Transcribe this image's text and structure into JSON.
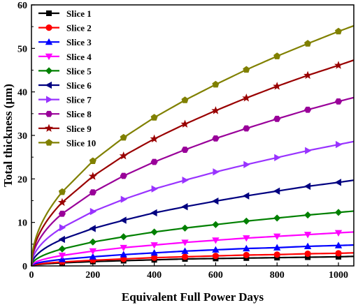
{
  "chart_data": {
    "type": "line",
    "title": "",
    "xlabel": "Equivalent Full Power Days",
    "ylabel": "Total thickness (μm)",
    "xlim": [
      0,
      1050
    ],
    "ylim": [
      0,
      60
    ],
    "xticks": [
      0,
      200,
      400,
      600,
      800,
      1000
    ],
    "yticks": [
      0,
      10,
      20,
      30,
      40,
      50,
      60
    ],
    "grid": false,
    "legend_position": "top-left",
    "x": [
      0,
      100,
      200,
      300,
      400,
      500,
      600,
      700,
      800,
      900,
      1000,
      1050
    ],
    "series": [
      {
        "name": "Slice 1",
        "color": "#000000",
        "marker": "square",
        "values": [
          0,
          0.7,
          1.0,
          1.2,
          1.4,
          1.6,
          1.7,
          1.8,
          1.9,
          2.0,
          2.1,
          2.2
        ]
      },
      {
        "name": "Slice 2",
        "color": "#ff0000",
        "marker": "circle",
        "values": [
          0,
          0.9,
          1.3,
          1.6,
          1.9,
          2.1,
          2.3,
          2.5,
          2.6,
          2.8,
          2.9,
          3.0
        ]
      },
      {
        "name": "Slice 3",
        "color": "#0000ff",
        "marker": "triangle-up",
        "values": [
          0,
          1.5,
          2.1,
          2.6,
          3.0,
          3.4,
          3.7,
          4.0,
          4.2,
          4.5,
          4.7,
          4.8
        ]
      },
      {
        "name": "Slice 4",
        "color": "#ff00ff",
        "marker": "triangle-down",
        "values": [
          0,
          2.4,
          3.4,
          4.2,
          4.8,
          5.4,
          5.9,
          6.4,
          6.8,
          7.2,
          7.6,
          7.8
        ]
      },
      {
        "name": "Slice 5",
        "color": "#008000",
        "marker": "diamond",
        "values": [
          0,
          3.9,
          5.5,
          6.7,
          7.8,
          8.7,
          9.5,
          10.3,
          11.0,
          11.7,
          12.3,
          12.6
        ]
      },
      {
        "name": "Slice 6",
        "color": "#000080",
        "marker": "triangle-left",
        "values": [
          0,
          6.1,
          8.6,
          10.5,
          12.2,
          13.6,
          14.9,
          16.1,
          17.2,
          18.3,
          19.2,
          19.7
        ]
      },
      {
        "name": "Slice 7",
        "color": "#9933ff",
        "marker": "triangle-right",
        "values": [
          0,
          8.8,
          12.5,
          15.3,
          17.7,
          19.7,
          21.6,
          23.3,
          24.9,
          26.5,
          27.9,
          28.6
        ]
      },
      {
        "name": "Slice 8",
        "color": "#990099",
        "marker": "hexagon",
        "values": [
          0,
          12.0,
          16.9,
          20.7,
          23.9,
          26.7,
          29.3,
          31.6,
          33.8,
          35.9,
          37.8,
          38.7
        ]
      },
      {
        "name": "Slice 9",
        "color": "#990000",
        "marker": "star",
        "values": [
          0,
          14.6,
          20.6,
          25.3,
          29.2,
          32.6,
          35.7,
          38.6,
          41.3,
          43.8,
          46.1,
          47.3
        ]
      },
      {
        "name": "Slice 10",
        "color": "#808000",
        "marker": "pentagon",
        "values": [
          0,
          17.0,
          24.1,
          29.5,
          34.1,
          38.1,
          41.7,
          45.1,
          48.2,
          51.1,
          53.9,
          55.2
        ]
      }
    ]
  }
}
